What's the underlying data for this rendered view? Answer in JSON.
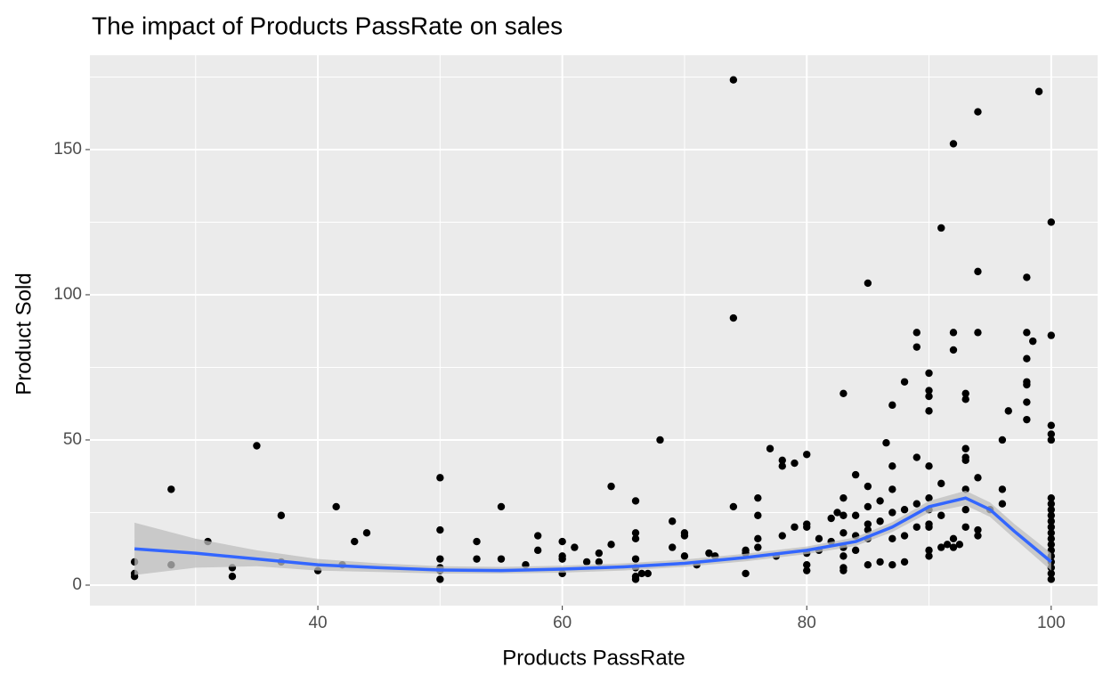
{
  "chart_data": {
    "type": "scatter",
    "title": "The impact of Products PassRate on sales",
    "xlabel": "Products PassRate",
    "ylabel": "Product Sold",
    "xlim": [
      21.35,
      103.8
    ],
    "ylim": [
      -7.06,
      182.5
    ],
    "xticks": [
      40,
      60,
      80,
      100
    ],
    "yticks": [
      0,
      50,
      100,
      150
    ],
    "xminor": [
      30,
      50,
      70,
      90
    ],
    "yminor": [
      25,
      75,
      125,
      175
    ],
    "grid": true,
    "color": "#000000",
    "x": [
      25,
      25,
      25,
      28,
      28,
      31,
      33,
      33,
      35,
      37,
      37,
      40,
      41.5,
      42,
      43,
      44,
      50,
      50,
      50,
      50,
      50,
      50,
      53,
      53,
      55,
      55,
      57,
      58,
      58,
      60,
      60,
      60,
      60,
      61,
      62,
      63,
      63,
      64,
      64,
      66,
      66,
      66,
      66,
      66,
      66,
      66,
      66.5,
      67,
      68,
      69,
      69,
      70,
      70,
      70,
      71,
      72,
      72.5,
      74,
      74,
      74,
      75,
      75,
      75,
      76,
      76,
      76,
      76,
      77,
      77.5,
      78,
      78,
      78,
      79,
      79,
      80,
      80,
      80,
      80,
      80,
      80,
      81,
      81,
      82,
      82,
      82.5,
      83,
      83,
      83,
      83,
      83,
      83,
      83,
      83,
      84,
      84,
      84,
      84,
      85,
      85,
      85,
      85,
      85,
      85,
      85,
      86,
      86,
      86,
      86.5,
      87,
      87,
      87,
      87,
      87,
      87,
      88,
      88,
      88,
      88,
      89,
      89,
      89,
      89,
      89,
      90,
      90,
      90,
      90,
      90,
      90,
      90,
      90,
      90,
      90,
      90,
      91,
      91,
      91,
      91,
      91.5,
      92,
      92,
      92,
      92,
      92,
      92.5,
      93,
      93,
      93,
      93,
      93,
      93,
      93,
      93,
      94,
      94,
      94,
      94,
      94,
      94,
      95,
      96,
      96,
      96,
      96.5,
      98,
      98,
      98,
      98,
      98,
      98,
      98,
      98.5,
      99,
      100,
      100,
      100,
      100,
      100,
      100,
      100,
      100,
      100,
      100,
      100,
      100,
      100,
      100,
      100,
      100,
      100,
      100,
      100,
      100
    ],
    "values": [
      3,
      4,
      8,
      7,
      33,
      15,
      3,
      6,
      48,
      8,
      24,
      5,
      27,
      7,
      15,
      18,
      2,
      5,
      6,
      9,
      19,
      37,
      9,
      15,
      9,
      27,
      7,
      12,
      17,
      4,
      9,
      10,
      15,
      13,
      8,
      8,
      11,
      34,
      14,
      2,
      3,
      6,
      9,
      16,
      18,
      29,
      4,
      4,
      50,
      13,
      22,
      10,
      17,
      18,
      7,
      11,
      10,
      174,
      92,
      27,
      4,
      11,
      12,
      16,
      24,
      30,
      13,
      47,
      10,
      41,
      43,
      17,
      42,
      20,
      5,
      7,
      11,
      20,
      21,
      45,
      16,
      12,
      23,
      15,
      25,
      5,
      6,
      10,
      13,
      18,
      24,
      30,
      66,
      12,
      17,
      24,
      38,
      7,
      16,
      19,
      21,
      27,
      34,
      104,
      8,
      22,
      29,
      49,
      7,
      16,
      25,
      33,
      41,
      62,
      8,
      17,
      26,
      70,
      44,
      82,
      87,
      20,
      28,
      10,
      12,
      20,
      21,
      26,
      30,
      41,
      60,
      65,
      67,
      73,
      13,
      24,
      35,
      123,
      14,
      13,
      16,
      81,
      87,
      152,
      14,
      20,
      26,
      33,
      43,
      44,
      47,
      64,
      66,
      17,
      19,
      37,
      87,
      108,
      163,
      26,
      28,
      33,
      50,
      60,
      57,
      63,
      69,
      70,
      78,
      87,
      106,
      84,
      170,
      2,
      4,
      6,
      8,
      10,
      12,
      14,
      16,
      18,
      20,
      22,
      24,
      26,
      28,
      30,
      50,
      52,
      55,
      86,
      125
    ],
    "smooth": {
      "color": "#3366ff",
      "band_color": "#bdbdbd",
      "x": [
        25,
        30,
        35,
        40,
        45,
        50,
        55,
        60,
        65,
        70,
        75,
        80,
        84,
        87,
        90,
        93,
        95,
        97,
        100
      ],
      "values": [
        12.5,
        11,
        9,
        7,
        6,
        5.2,
        5,
        5.5,
        6.3,
        7.5,
        9.5,
        12,
        15,
        20,
        27,
        30,
        26,
        18.5,
        8
      ],
      "lower": [
        3.5,
        6,
        6.5,
        5,
        4.5,
        4,
        4,
        4.3,
        5,
        6.3,
        8.2,
        10.7,
        13.5,
        18.3,
        25,
        27.5,
        23.5,
        16,
        5
      ],
      "upper": [
        21.5,
        16,
        12,
        9,
        7.5,
        6.5,
        6.3,
        6.7,
        7.5,
        8.8,
        10.8,
        13.3,
        16.5,
        21.7,
        29,
        32.5,
        28.5,
        21,
        11
      ]
    }
  }
}
